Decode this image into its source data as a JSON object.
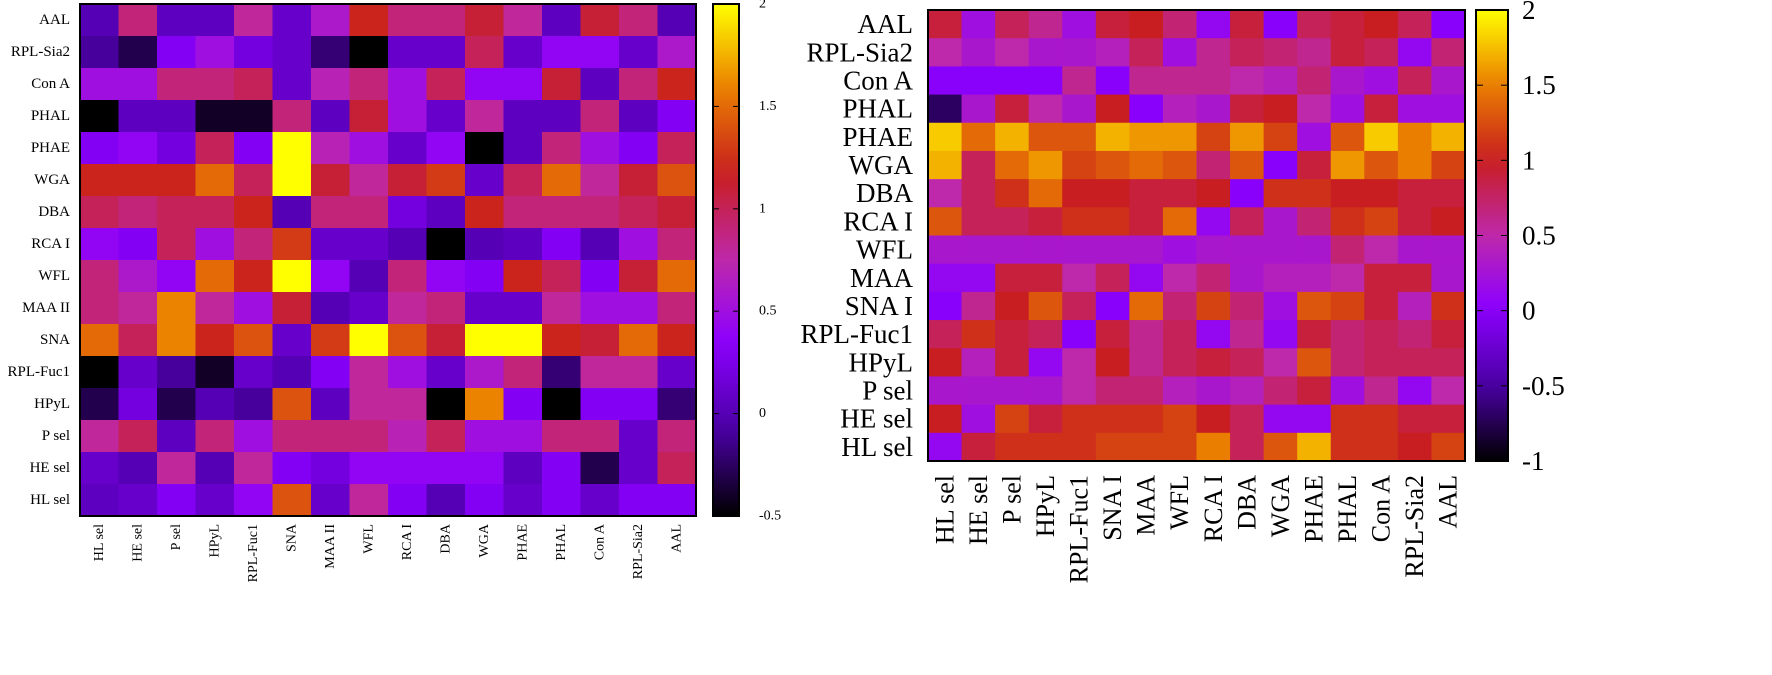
{
  "chart_data": [
    {
      "type": "heatmap",
      "name": "left",
      "rows": [
        "AAL",
        "RPL-Sia2",
        "Con A",
        "PHAL",
        "PHAE",
        "WGA",
        "DBA",
        "RCA I",
        "WFL",
        "MAA II",
        "SNA",
        "RPL-Fuc1",
        "HPyL",
        "P sel",
        "HE sel",
        "HL sel"
      ],
      "columns": [
        "HL sel",
        "HE sel",
        "P sel",
        "HPyL",
        "RPL-Fuc1",
        "SNA",
        "MAA II",
        "WFL",
        "RCA I",
        "DBA",
        "WGA",
        "PHAE",
        "PHAL",
        "Con A",
        "RPL-Sia2",
        "AAL"
      ],
      "values": [
        [
          0.0,
          0.9,
          0.05,
          0.05,
          0.8,
          0.1,
          0.6,
          1.2,
          0.9,
          0.9,
          1.1,
          0.8,
          0.05,
          1.1,
          0.9,
          0.0
        ],
        [
          -0.1,
          -0.3,
          0.3,
          0.5,
          0.2,
          0.1,
          -0.2,
          -0.5,
          0.1,
          0.1,
          1.0,
          0.1,
          0.4,
          0.4,
          0.1,
          0.6
        ],
        [
          0.5,
          0.5,
          0.9,
          0.9,
          1.0,
          0.1,
          0.7,
          0.9,
          0.5,
          1.0,
          0.4,
          0.4,
          1.1,
          0.05,
          0.9,
          1.2
        ],
        [
          -0.8,
          0.05,
          0.05,
          -0.4,
          -0.4,
          0.9,
          0.05,
          1.1,
          0.5,
          0.1,
          0.8,
          0.05,
          0.05,
          0.9,
          0.05,
          0.3
        ],
        [
          0.3,
          0.4,
          0.2,
          1.0,
          0.3,
          2.0,
          0.7,
          0.5,
          0.1,
          0.4,
          -0.6,
          0.05,
          0.9,
          0.5,
          0.3,
          1.0
        ],
        [
          1.2,
          1.2,
          1.2,
          1.5,
          1.0,
          2.0,
          1.1,
          0.8,
          1.1,
          1.3,
          0.1,
          1.0,
          1.5,
          0.8,
          1.1,
          1.4
        ],
        [
          1.0,
          0.9,
          1.0,
          1.0,
          1.2,
          0.0,
          0.9,
          0.9,
          0.2,
          0.05,
          1.2,
          0.9,
          0.9,
          0.9,
          1.0,
          1.1
        ],
        [
          0.4,
          0.3,
          1.0,
          0.5,
          0.9,
          1.3,
          0.1,
          0.1,
          0.0,
          -0.6,
          0.0,
          0.05,
          0.3,
          0.0,
          0.5,
          0.9
        ],
        [
          0.9,
          0.6,
          0.4,
          1.5,
          1.2,
          2.0,
          0.4,
          0.0,
          0.9,
          0.4,
          0.3,
          1.2,
          1.0,
          0.3,
          1.1,
          1.5
        ],
        [
          0.9,
          0.8,
          1.6,
          0.8,
          0.5,
          1.1,
          0.0,
          0.1,
          0.8,
          0.9,
          0.1,
          0.1,
          0.8,
          0.5,
          0.5,
          0.9
        ],
        [
          1.5,
          1.0,
          1.6,
          1.2,
          1.4,
          0.1,
          1.3,
          2.0,
          1.4,
          1.1,
          2.0,
          2.0,
          1.2,
          1.1,
          1.5,
          1.2
        ],
        [
          -0.6,
          0.1,
          -0.1,
          -0.4,
          0.1,
          0.0,
          0.3,
          0.8,
          0.5,
          0.1,
          0.6,
          0.9,
          -0.2,
          0.8,
          0.8,
          0.1
        ],
        [
          -0.3,
          0.2,
          -0.3,
          0.0,
          -0.1,
          1.4,
          0.05,
          0.8,
          0.8,
          -0.9,
          1.6,
          0.3,
          -0.9,
          0.3,
          0.3,
          -0.2
        ],
        [
          0.8,
          1.0,
          0.05,
          0.9,
          0.5,
          0.9,
          0.9,
          0.9,
          0.7,
          1.0,
          0.5,
          0.5,
          0.9,
          0.9,
          0.1,
          0.9
        ],
        [
          0.1,
          0.0,
          0.8,
          0.0,
          0.8,
          0.3,
          0.2,
          0.4,
          0.4,
          0.4,
          0.4,
          0.05,
          0.3,
          -0.3,
          0.1,
          1.0
        ],
        [
          0.05,
          0.1,
          0.3,
          0.1,
          0.4,
          1.4,
          0.1,
          0.8,
          0.3,
          0.0,
          0.3,
          0.1,
          0.3,
          0.1,
          0.3,
          0.3
        ]
      ],
      "colorbar": {
        "min": -0.5,
        "max": 2,
        "ticks": [
          "-0.5",
          "0",
          "0.5",
          "1",
          "1.5",
          "2"
        ]
      }
    },
    {
      "type": "heatmap",
      "name": "right",
      "rows": [
        "AAL",
        "RPL-Sia2",
        "Con A",
        "PHAL",
        "PHAE",
        "WGA",
        "DBA",
        "RCA I",
        "WFL",
        "MAA",
        "SNA I",
        "RPL-Fuc1",
        "HPyL",
        "P sel",
        "HE sel",
        "HL sel"
      ],
      "columns": [
        "HL sel",
        "HE sel",
        "P sel",
        "HPyL",
        "RPL-Fuc1",
        "SNA I",
        "MAA",
        "WFL",
        "RCA I",
        "DBA",
        "WGA",
        "PHAE",
        "PHAL",
        "Con A",
        "RPL-Sia2",
        "AAL"
      ],
      "values": [
        [
          0.9,
          0.2,
          0.8,
          0.6,
          0.2,
          0.9,
          1.0,
          0.7,
          0.1,
          0.9,
          0.0,
          0.8,
          0.9,
          1.0,
          0.8,
          0.0
        ],
        [
          0.5,
          0.3,
          0.5,
          0.3,
          0.3,
          0.4,
          0.8,
          0.2,
          0.6,
          0.8,
          0.7,
          0.6,
          0.9,
          0.8,
          0.1,
          0.7
        ],
        [
          0.0,
          0.0,
          0.0,
          0.0,
          0.6,
          0.0,
          0.6,
          0.6,
          0.6,
          0.5,
          0.4,
          0.7,
          0.3,
          0.2,
          0.8,
          0.3
        ],
        [
          -0.7,
          0.3,
          0.9,
          0.5,
          0.3,
          1.0,
          0.0,
          0.4,
          0.3,
          0.9,
          1.0,
          0.5,
          0.2,
          0.9,
          0.2,
          0.2
        ],
        [
          1.8,
          1.4,
          1.7,
          1.3,
          1.3,
          1.7,
          1.6,
          1.6,
          1.2,
          1.6,
          1.2,
          0.2,
          1.3,
          1.8,
          1.5,
          1.7
        ],
        [
          1.7,
          0.8,
          1.4,
          1.6,
          1.2,
          1.3,
          1.4,
          1.3,
          0.7,
          1.3,
          0.0,
          0.9,
          1.6,
          1.3,
          1.5,
          1.2
        ],
        [
          0.5,
          0.8,
          1.1,
          1.4,
          1.0,
          1.0,
          0.9,
          0.9,
          1.0,
          0.0,
          1.1,
          1.1,
          1.0,
          1.0,
          0.9,
          0.9
        ],
        [
          1.3,
          0.8,
          0.8,
          0.9,
          1.1,
          1.1,
          0.9,
          1.4,
          0.1,
          0.8,
          0.3,
          0.7,
          1.1,
          1.2,
          0.9,
          1.0
        ],
        [
          0.3,
          0.3,
          0.3,
          0.3,
          0.3,
          0.3,
          0.3,
          0.2,
          0.3,
          0.3,
          0.3,
          0.3,
          0.7,
          0.5,
          0.3,
          0.3
        ],
        [
          0.1,
          0.1,
          0.9,
          0.9,
          0.5,
          0.8,
          0.1,
          0.5,
          0.7,
          0.3,
          0.4,
          0.4,
          0.5,
          0.9,
          0.9,
          0.3
        ],
        [
          0.0,
          0.6,
          1.0,
          1.3,
          0.8,
          0.0,
          1.4,
          0.7,
          1.2,
          0.7,
          0.2,
          1.3,
          1.2,
          0.9,
          0.4,
          1.1
        ],
        [
          0.8,
          1.1,
          0.9,
          0.8,
          0.0,
          0.9,
          0.6,
          0.8,
          0.1,
          0.6,
          0.1,
          0.9,
          0.7,
          0.8,
          0.7,
          0.9
        ],
        [
          1.0,
          0.4,
          0.9,
          0.1,
          0.5,
          1.0,
          0.6,
          0.8,
          0.9,
          0.8,
          0.5,
          1.3,
          0.7,
          0.8,
          0.8,
          0.8
        ],
        [
          0.3,
          0.3,
          0.3,
          0.3,
          0.5,
          0.7,
          0.7,
          0.4,
          0.3,
          0.4,
          0.7,
          0.9,
          0.2,
          0.6,
          0.1,
          0.5
        ],
        [
          1.0,
          0.2,
          1.2,
          0.9,
          1.1,
          1.1,
          1.1,
          1.2,
          1.0,
          0.8,
          0.1,
          0.1,
          1.1,
          1.1,
          0.9,
          0.9
        ],
        [
          0.1,
          0.9,
          1.1,
          1.1,
          1.1,
          1.2,
          1.2,
          1.2,
          1.5,
          0.8,
          1.3,
          1.7,
          1.1,
          1.1,
          1.0,
          1.2
        ]
      ],
      "colorbar": {
        "min": -1,
        "max": 2,
        "ticks": [
          "-1",
          "-0.5",
          "0",
          "0.5",
          "1",
          "1.5",
          "2"
        ]
      }
    }
  ]
}
